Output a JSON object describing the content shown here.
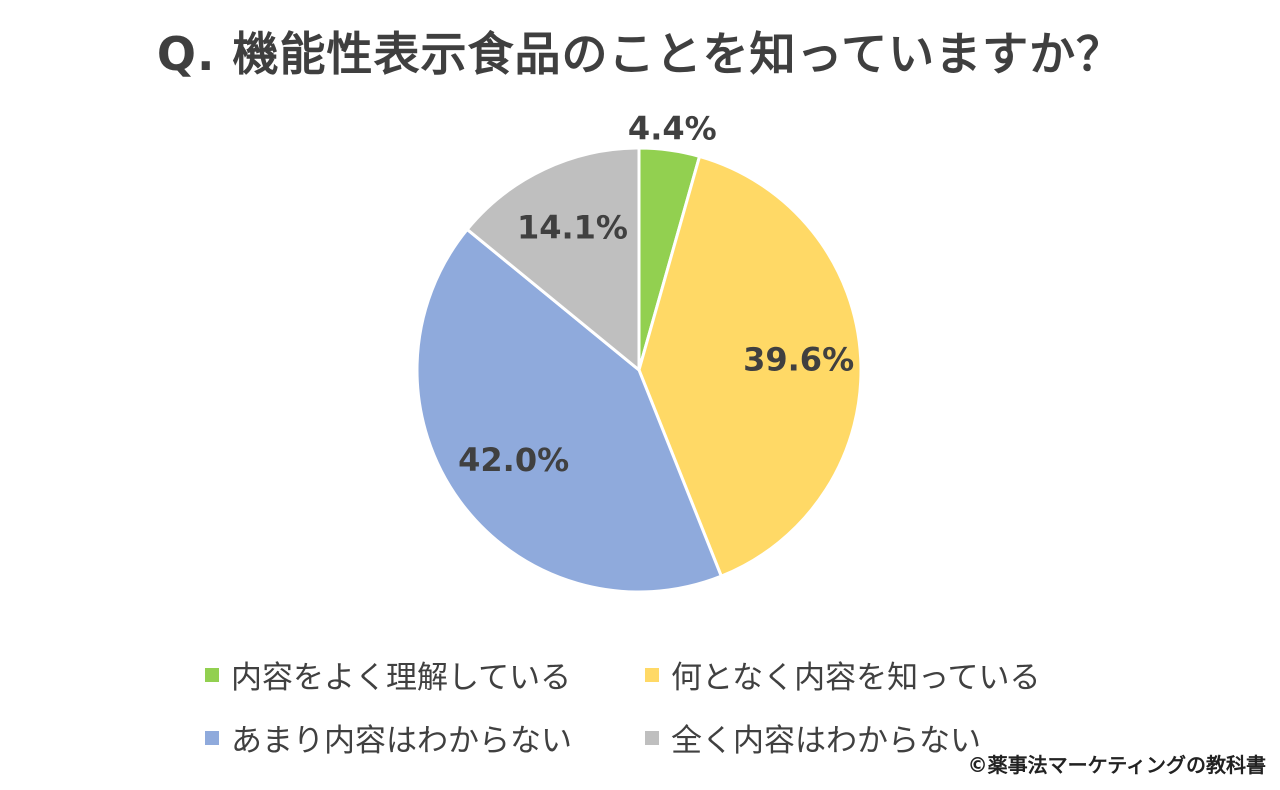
{
  "title": "Q. 機能性表示食品のことを知っていますか？",
  "credit": "©薬事法マーケティングの教科書",
  "chart_data": {
    "type": "pie",
    "start": "12 o'clock, clockwise",
    "slices": [
      {
        "label": "内容をよく理解している",
        "value": 4.4,
        "value_label": "4.4%",
        "color": "#92d050"
      },
      {
        "label": "何となく内容を知っている",
        "value": 39.6,
        "value_label": "39.6%",
        "color": "#ffd966"
      },
      {
        "label": "あまり内容はわからない",
        "value": 42.0,
        "value_label": "42.0%",
        "color": "#8faadc"
      },
      {
        "label": "全く内容はわからない",
        "value": 14.1,
        "value_label": "14.1%",
        "color": "#bfbfbf"
      }
    ],
    "legend_position": "bottom"
  }
}
